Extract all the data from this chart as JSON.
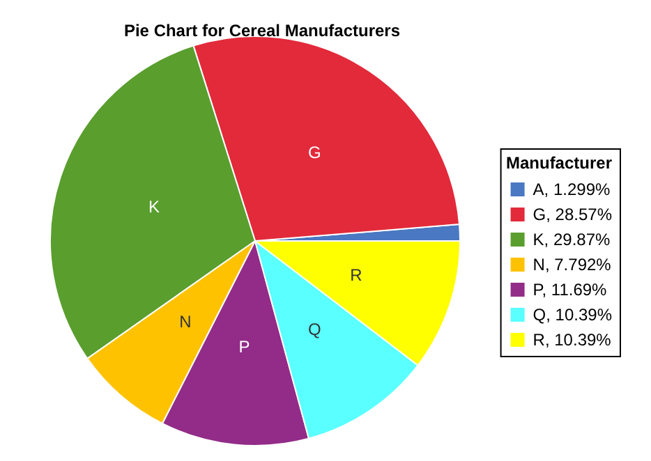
{
  "chart_data": {
    "type": "pie",
    "title": "Pie Chart for Cereal Manufacturers",
    "legend_title": "Manufacturer",
    "legend": "right",
    "categories": [
      "A, 1.299%",
      "G, 28.57%",
      "K, 29.87%",
      "N, 7.792%",
      "P, 11.69%",
      "Q, 10.39%",
      "R, 10.39%"
    ],
    "values": [
      1.299,
      28.57,
      29.87,
      7.792,
      11.69,
      10.39,
      10.39
    ],
    "colors": [
      "#4a78c2",
      "#e22a3a",
      "#5a9e2e",
      "#ffc200",
      "#922c88",
      "#5affff",
      "#ffff00"
    ],
    "annotations": [
      {
        "text": "G",
        "x": "G, 28.57%"
      },
      {
        "text": "K",
        "x": "K, 29.87%"
      },
      {
        "text": "N",
        "x": "N, 7.792%"
      },
      {
        "text": "P",
        "x": "P, 11.69%"
      },
      {
        "text": "Q",
        "x": "Q, 10.39%"
      },
      {
        "text": "R",
        "x": "R, 10.39%"
      }
    ]
  }
}
